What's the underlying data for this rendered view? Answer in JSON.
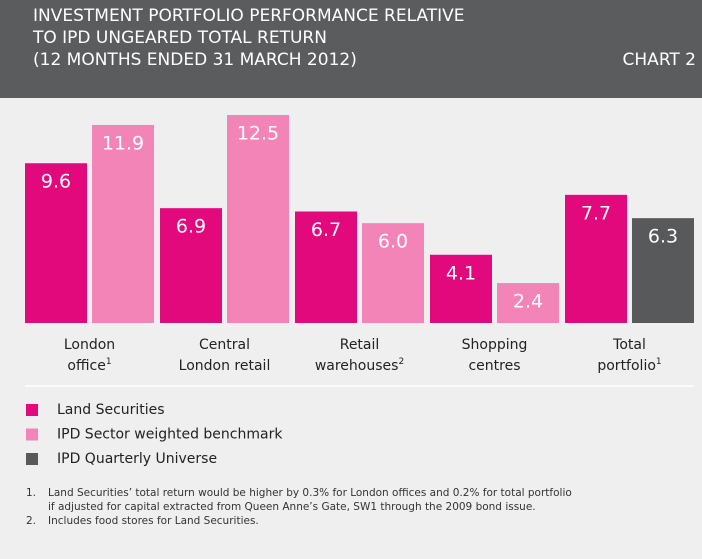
{
  "chart_data": {
    "type": "bar",
    "title": [
      "INVESTMENT PORTFOLIO PERFORMANCE RELATIVE",
      "TO IPD UNGEARED TOTAL RETURN",
      "(12 MONTHS ENDED 31 MARCH 2012)"
    ],
    "chart_label": "CHART 2",
    "categories": [
      "London office",
      "Central London retail",
      "Retail warehouses",
      "Shopping centres",
      "Total portfolio"
    ],
    "category_notes": [
      "1",
      null,
      "2",
      null,
      "1"
    ],
    "series": [
      {
        "name": "Land Securities",
        "color": "#e2097d",
        "values": [
          9.6,
          6.9,
          6.7,
          4.1,
          7.7
        ],
        "value_labels": [
          "9.6",
          "6.9",
          "6.7",
          "4.1",
          "7.7"
        ]
      },
      {
        "name": "IPD Sector weighted benchmark",
        "color": "#f384b8",
        "values": [
          11.9,
          12.5,
          6.0,
          2.4,
          null
        ],
        "value_labels": [
          "11.9",
          "12.5",
          "6.0",
          "2.4",
          null
        ]
      },
      {
        "name": "IPD Quarterly Universe",
        "color": "#58595b",
        "values": [
          null,
          null,
          null,
          null,
          6.3
        ],
        "value_labels": [
          null,
          null,
          null,
          null,
          "6.3"
        ]
      }
    ],
    "ylim": [
      0,
      13.4
    ],
    "notes": [
      {
        "number": "1.",
        "lines": [
          "Land Securities’ total return would be higher by 0.3% for London offices and 0.2% for total portfolio",
          "if adjusted for capital extracted from Queen Anne’s Gate, SW1 through the 2009 bond issue."
        ]
      },
      {
        "number": "2.",
        "lines": [
          "Includes food stores for Land Securities."
        ]
      }
    ]
  }
}
